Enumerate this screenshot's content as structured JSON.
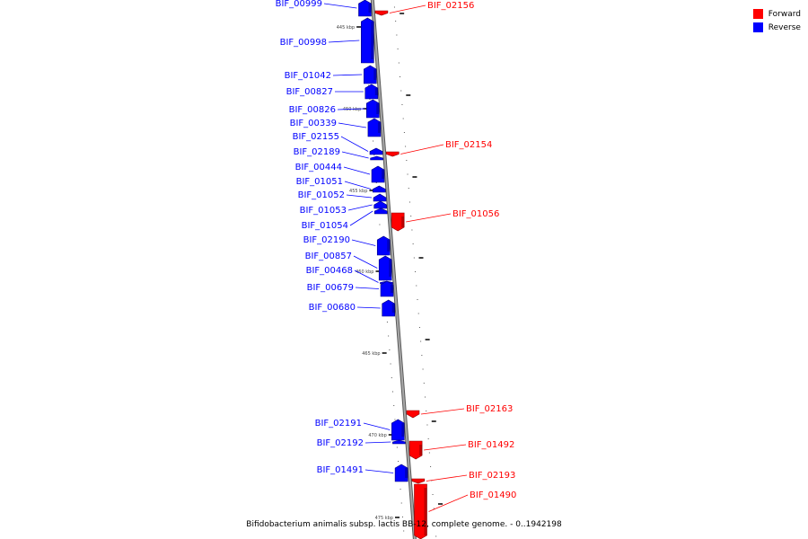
{
  "colors": {
    "forward": "#ff0000",
    "reverse": "#0000ff",
    "backbone": "#888888"
  },
  "legend": [
    {
      "label": "Forward",
      "strand": "forward"
    },
    {
      "label": "Reverse",
      "strand": "reverse"
    }
  ],
  "caption": "Bifidobacterium animalis subsp. lactis BB-12, complete genome. - 0..1942198",
  "tick_labels": [
    "445 kbp",
    "450 kbp",
    "455 kbp",
    "460 kbp",
    "465 kbp",
    "470 kbp",
    "475 kbp"
  ],
  "genes": [
    {
      "id": "BIF_00999",
      "strand": "reverse"
    },
    {
      "id": "BIF_00998",
      "strand": "reverse"
    },
    {
      "id": "BIF_01042",
      "strand": "reverse"
    },
    {
      "id": "BIF_00827",
      "strand": "reverse"
    },
    {
      "id": "BIF_00826",
      "strand": "reverse"
    },
    {
      "id": "BIF_00339",
      "strand": "reverse"
    },
    {
      "id": "BIF_02155",
      "strand": "reverse"
    },
    {
      "id": "BIF_02189",
      "strand": "reverse"
    },
    {
      "id": "BIF_00444",
      "strand": "reverse"
    },
    {
      "id": "BIF_01051",
      "strand": "reverse"
    },
    {
      "id": "BIF_01052",
      "strand": "reverse"
    },
    {
      "id": "BIF_01053",
      "strand": "reverse"
    },
    {
      "id": "BIF_01054",
      "strand": "reverse"
    },
    {
      "id": "BIF_02190",
      "strand": "reverse"
    },
    {
      "id": "BIF_00857",
      "strand": "reverse"
    },
    {
      "id": "BIF_00468",
      "strand": "reverse"
    },
    {
      "id": "BIF_00679",
      "strand": "reverse"
    },
    {
      "id": "BIF_00680",
      "strand": "reverse"
    },
    {
      "id": "BIF_02191",
      "strand": "reverse"
    },
    {
      "id": "BIF_02192",
      "strand": "reverse"
    },
    {
      "id": "BIF_01491",
      "strand": "reverse"
    },
    {
      "id": "BIF_02156",
      "strand": "forward"
    },
    {
      "id": "BIF_02154",
      "strand": "forward"
    },
    {
      "id": "BIF_01056",
      "strand": "forward"
    },
    {
      "id": "BIF_02163",
      "strand": "forward"
    },
    {
      "id": "BIF_01492",
      "strand": "forward"
    },
    {
      "id": "BIF_02193",
      "strand": "forward"
    },
    {
      "id": "BIF_01490",
      "strand": "forward"
    }
  ]
}
